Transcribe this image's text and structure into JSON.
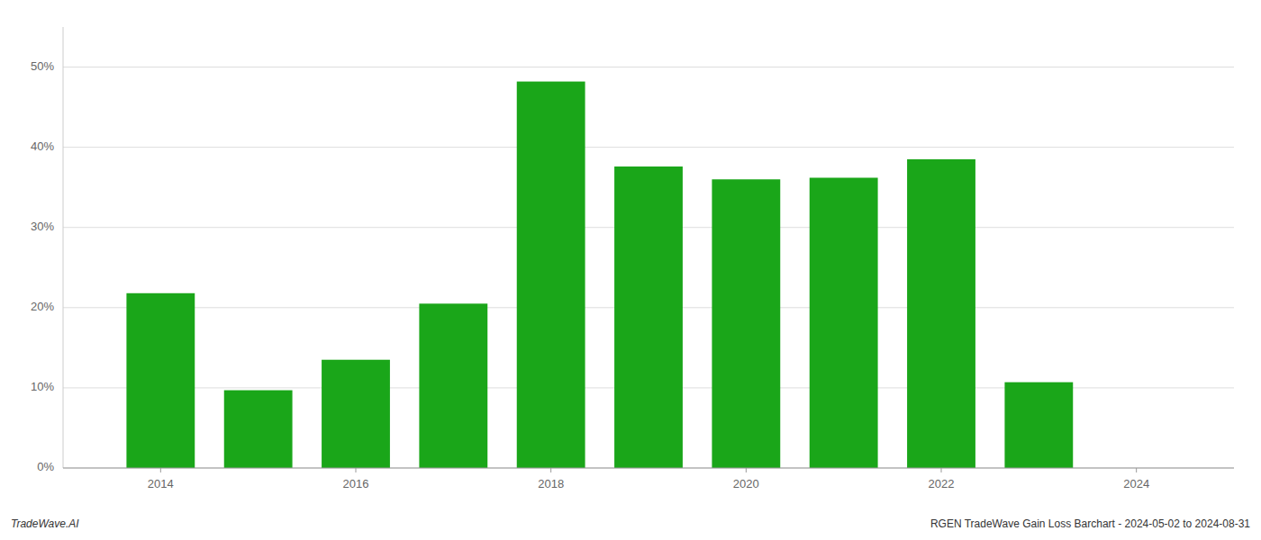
{
  "chart_data": {
    "type": "bar",
    "x": [
      2014,
      2015,
      2016,
      2017,
      2018,
      2019,
      2020,
      2021,
      2022,
      2023
    ],
    "values": [
      0.218,
      0.097,
      0.135,
      0.205,
      0.482,
      0.376,
      0.36,
      0.362,
      0.385,
      0.107
    ],
    "color": "#1aa619",
    "xlim": [
      2013.0,
      2025.0
    ],
    "xticks": [
      2014,
      2016,
      2018,
      2020,
      2022,
      2024
    ],
    "ylim": [
      0,
      0.55
    ],
    "yticks": [
      {
        "value": 0.0,
        "label": "0%"
      },
      {
        "value": 0.1,
        "label": "10%"
      },
      {
        "value": 0.2,
        "label": "20%"
      },
      {
        "value": 0.3,
        "label": "30%"
      },
      {
        "value": 0.4,
        "label": "40%"
      },
      {
        "value": 0.5,
        "label": "50%"
      }
    ],
    "grid": true,
    "annotations": [
      "TradeWave.AI",
      "RGEN TradeWave Gain Loss Barchart - 2024-05-02 to 2024-08-31"
    ]
  }
}
